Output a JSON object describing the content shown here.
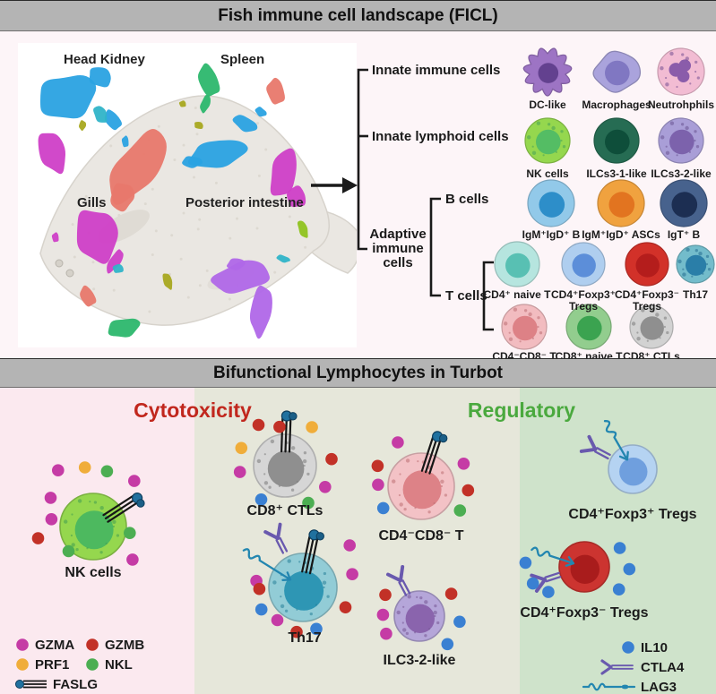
{
  "titles": {
    "top": "Fish immune cell landscape (FICL)",
    "bottom": "Bifunctional Lymphocytes in Turbot"
  },
  "title_bar": {
    "bg": "#b4b4b4",
    "text_color": "#111111"
  },
  "umap": {
    "labels": {
      "head_kidney": "Head Kidney",
      "spleen": "Spleen",
      "gills": "Gills",
      "posterior_intestine": "Posterior intestine"
    },
    "fish_body_color": "#eae7e2",
    "cluster_colors": {
      "blue": "#2aa2e2",
      "salmon": "#e8786c",
      "magenta": "#cf3fc7",
      "purple": "#b067e8",
      "green": "#2cb76d",
      "olive": "#a8a81f",
      "teal": "#30b4c8",
      "lime": "#8fc31f"
    }
  },
  "tree": {
    "branch1": "Innate immune cells",
    "branch2": "Innate lymphoid cells",
    "adaptive1": "Adaptive",
    "adaptive2": "immune",
    "adaptive3": "cells",
    "b_cells": "B cells",
    "t_cells": "T cells"
  },
  "molecule_colors": {
    "GZMA": "#c53ba5",
    "GZMB": "#c23127",
    "PRF1": "#f0ad3a",
    "NKL": "#4cae52",
    "IL10": "#3a80d2",
    "FASLG": "#20719f",
    "CTLA4": "#6959ae",
    "LAG3": "#2286b0"
  },
  "catalog": {
    "rows": [
      {
        "cells": [
          {
            "id": "dc-like",
            "label": "DC-like",
            "body": "#9d74c4",
            "nucleus": "#63418f",
            "shape": "spiky"
          },
          {
            "id": "macrophages",
            "label": "Macrophages",
            "body": "#aaa3dc",
            "nucleus": "#8077c2",
            "shape": "blob"
          },
          {
            "id": "neutrophils",
            "label": "Neutrohphils",
            "body": "#f2bcd3",
            "nucleus": "#8a5caa",
            "lobed": true,
            "speckled": true
          }
        ]
      },
      {
        "cells": [
          {
            "id": "nk-cells",
            "label": "NK cells",
            "body": "#95d74e",
            "nucleus": "#54bd64",
            "speckled": true
          },
          {
            "id": "ilcs3-1-like",
            "label": "ILCs3-1-like",
            "body": "#266c53",
            "nucleus": "#0e4e3a"
          },
          {
            "id": "ilcs3-2-like",
            "label": "ILCs3-2-like",
            "body": "#a99ed7",
            "nucleus": "#7c62ac",
            "speckled": true
          }
        ]
      },
      {
        "cells": [
          {
            "id": "igm-igd-b",
            "label": "IgM⁺IgD⁺ B",
            "body": "#92c9e9",
            "nucleus": "#2d8ec9"
          },
          {
            "id": "igm-igd-ascs",
            "label": "IgM⁺IgD⁺ ASCs",
            "body": "#f0a23f",
            "nucleus": "#e27420"
          },
          {
            "id": "igt-b",
            "label": "IgT⁺ B",
            "body": "#47628d",
            "nucleus": "#1c2e52"
          }
        ]
      },
      {
        "cells": [
          {
            "id": "cd4-naive-t",
            "label": "CD4⁺ naive T",
            "body": "#b6e5df",
            "nucleus": "#58c0b3"
          },
          {
            "id": "cd4-foxp3pos-tregs",
            "label": "CD4⁺Foxp3⁺",
            "label2": "Tregs",
            "body": "#afceef",
            "nucleus": "#5c8ed9"
          },
          {
            "id": "cd4-foxp3neg-tregs",
            "label": "CD4⁺Foxp3⁻",
            "label2": "Tregs",
            "body": "#d23129",
            "nucleus": "#b41d1c"
          },
          {
            "id": "th17",
            "label": "Th17",
            "body": "#73bccb",
            "nucleus": "#2a7ea8",
            "speckled": true
          }
        ]
      },
      {
        "cells": [
          {
            "id": "cd4-cd8-dn-t",
            "label": "CD4⁻CD8⁻ T",
            "body": "#f2bcc0",
            "nucleus": "#dd8186",
            "speckled": true
          },
          {
            "id": "cd8-naive-t",
            "label": "CD8⁺ naive T",
            "body": "#92cd8e",
            "nucleus": "#3ba350"
          },
          {
            "id": "cd8-ctls",
            "label": "CD8⁺ CTLs",
            "body": "#d2d2d2",
            "nucleus": "#8f8f8f",
            "speckled": true
          }
        ]
      }
    ]
  },
  "bifunctional": {
    "cytotoxicity_title": "Cytotoxicity",
    "cytotoxicity_color": "#c1271d",
    "cytotoxicity_bg": "#fbe9ef",
    "regulatory_title": "Regulatory",
    "regulatory_color": "#4aa93e",
    "regulatory_bg": "#cfe3cb",
    "middle_bg": "#e6e7da",
    "cells": [
      {
        "id": "nk-cells",
        "label": "NK cells",
        "body": "#95d74e",
        "nucleus": "#4db95f",
        "speckled": true,
        "features": [
          {
            "type": "FASLG",
            "angle": -33
          }
        ],
        "molecules": [
          [
            "GZMA",
            -122,
            2.0
          ],
          [
            "PRF1",
            -98,
            1.8
          ],
          [
            "NKL",
            -76,
            1.72
          ],
          [
            "GZMA",
            -48,
            1.85
          ],
          [
            "GZMA",
            -146,
            1.55
          ],
          [
            "GZMA",
            -170,
            1.28
          ],
          [
            "GZMB",
            168,
            1.7
          ],
          [
            "NKL",
            10,
            1.12
          ],
          [
            "NKL",
            135,
            1.05
          ],
          [
            "GZMA",
            40,
            1.55
          ]
        ]
      },
      {
        "id": "cd8-ctls",
        "label": "CD8⁺ CTLs",
        "body": "#d6d6d6",
        "nucleus": "#8f8f8f",
        "speckled": true,
        "features": [
          {
            "type": "FASLG",
            "angle": -88
          }
        ],
        "molecules": [
          [
            "GZMB",
            -123,
            1.55
          ],
          [
            "GZMB",
            -98,
            1.25
          ],
          [
            "PRF1",
            -55,
            1.5
          ],
          [
            "GZMB",
            -8,
            1.5
          ],
          [
            "GZMA",
            28,
            1.45
          ],
          [
            "NKL",
            58,
            1.4
          ],
          [
            "IL10",
            125,
            1.32
          ],
          [
            "GZMA",
            172,
            1.45
          ],
          [
            "PRF1",
            -158,
            1.5
          ]
        ]
      },
      {
        "id": "cd4-cd8-dn-t",
        "label": "CD4⁻CD8⁻ T",
        "body": "#f3c2c6",
        "nucleus": "#dd8287",
        "speckled": true,
        "features": [
          {
            "type": "FASLG",
            "angle": -72
          }
        ],
        "molecules": [
          [
            "GZMA",
            -118,
            1.5
          ],
          [
            "GZMB",
            -155,
            1.45
          ],
          [
            "GZMA",
            -178,
            1.3
          ],
          [
            "IL10",
            150,
            1.32
          ],
          [
            "GZMA",
            -28,
            1.45
          ],
          [
            "GZMB",
            5,
            1.42
          ],
          [
            "NKL",
            32,
            1.38
          ]
        ]
      },
      {
        "id": "th17",
        "label": "Th17",
        "body": "#92ccd6",
        "nucleus": "#2e96b4",
        "speckled": true,
        "features": [
          {
            "type": "FASLG",
            "angle": -78
          },
          {
            "type": "CTLA4",
            "angle": -117,
            "dist": 1.62
          },
          {
            "type": "LAG3",
            "angle": -148,
            "dist": 2.05
          }
        ],
        "molecules": [
          [
            "GZMA",
            -172,
            1.38
          ],
          [
            "GZMB",
            178,
            1.28
          ],
          [
            "IL10",
            152,
            1.38
          ],
          [
            "GZMA",
            128,
            1.22
          ],
          [
            "GZMB",
            98,
            1.32
          ],
          [
            "IL10",
            72,
            1.28
          ],
          [
            "GZMB",
            25,
            1.38
          ],
          [
            "GZMA",
            -15,
            1.5
          ],
          [
            "GZMA",
            -42,
            1.85
          ]
        ]
      },
      {
        "id": "ilc3-2-like",
        "label": "ILC3-2-like",
        "body": "#b5a6d9",
        "nucleus": "#8a64ad",
        "speckled": true,
        "features": [
          {
            "type": "CTLA4",
            "angle": -118,
            "dist": 1.6
          }
        ],
        "molecules": [
          [
            "GZMB",
            -148,
            1.6
          ],
          [
            "GZMA",
            -178,
            1.45
          ],
          [
            "GZMA",
            152,
            1.5
          ],
          [
            "GZMB",
            -35,
            1.55
          ],
          [
            "IL10",
            8,
            1.62
          ],
          [
            "IL10",
            45,
            1.58
          ]
        ]
      },
      {
        "id": "cd4-foxp3pos-tregs",
        "label": "CD4⁺Foxp3⁺ Tregs",
        "body": "#b5d3f2",
        "nucleus": "#6f9fde",
        "features": [
          {
            "type": "CTLA4",
            "angle": -152,
            "dist": 1.75
          },
          {
            "type": "LAG3",
            "angle": -120,
            "dist": 2.3
          }
        ],
        "molecules": []
      },
      {
        "id": "cd4-foxp3neg-tregs",
        "label": "CD4⁺Foxp3⁻ Tregs",
        "body": "#cc3430",
        "nucleus": "#a91c1c",
        "features": [
          {
            "type": "CTLA4",
            "angle": 162,
            "dist": 1.65
          },
          {
            "type": "LAG3",
            "angle": -162,
            "dist": 2.2
          }
        ],
        "molecules": [
          [
            "IL10",
            184,
            2.35
          ],
          [
            "IL10",
            162,
            2.15
          ],
          [
            "IL10",
            145,
            1.75
          ],
          [
            "IL10",
            -28,
            1.6
          ],
          [
            "IL10",
            3,
            1.8
          ],
          [
            "IL10",
            33,
            1.65
          ]
        ]
      }
    ],
    "legend_left": [
      {
        "label": "GZMA",
        "swatch": "GZMA"
      },
      {
        "label": "GZMB",
        "swatch": "GZMB"
      },
      {
        "label": "PRF1",
        "swatch": "PRF1"
      },
      {
        "label": "NKL",
        "swatch": "NKL"
      },
      {
        "label": "FASLG",
        "swatch": "FASLG"
      }
    ],
    "legend_right": [
      {
        "label": "IL10",
        "swatch": "IL10"
      },
      {
        "label": "CTLA4",
        "swatch": "CTLA4"
      },
      {
        "label": "LAG3",
        "swatch": "LAG3"
      }
    ]
  }
}
